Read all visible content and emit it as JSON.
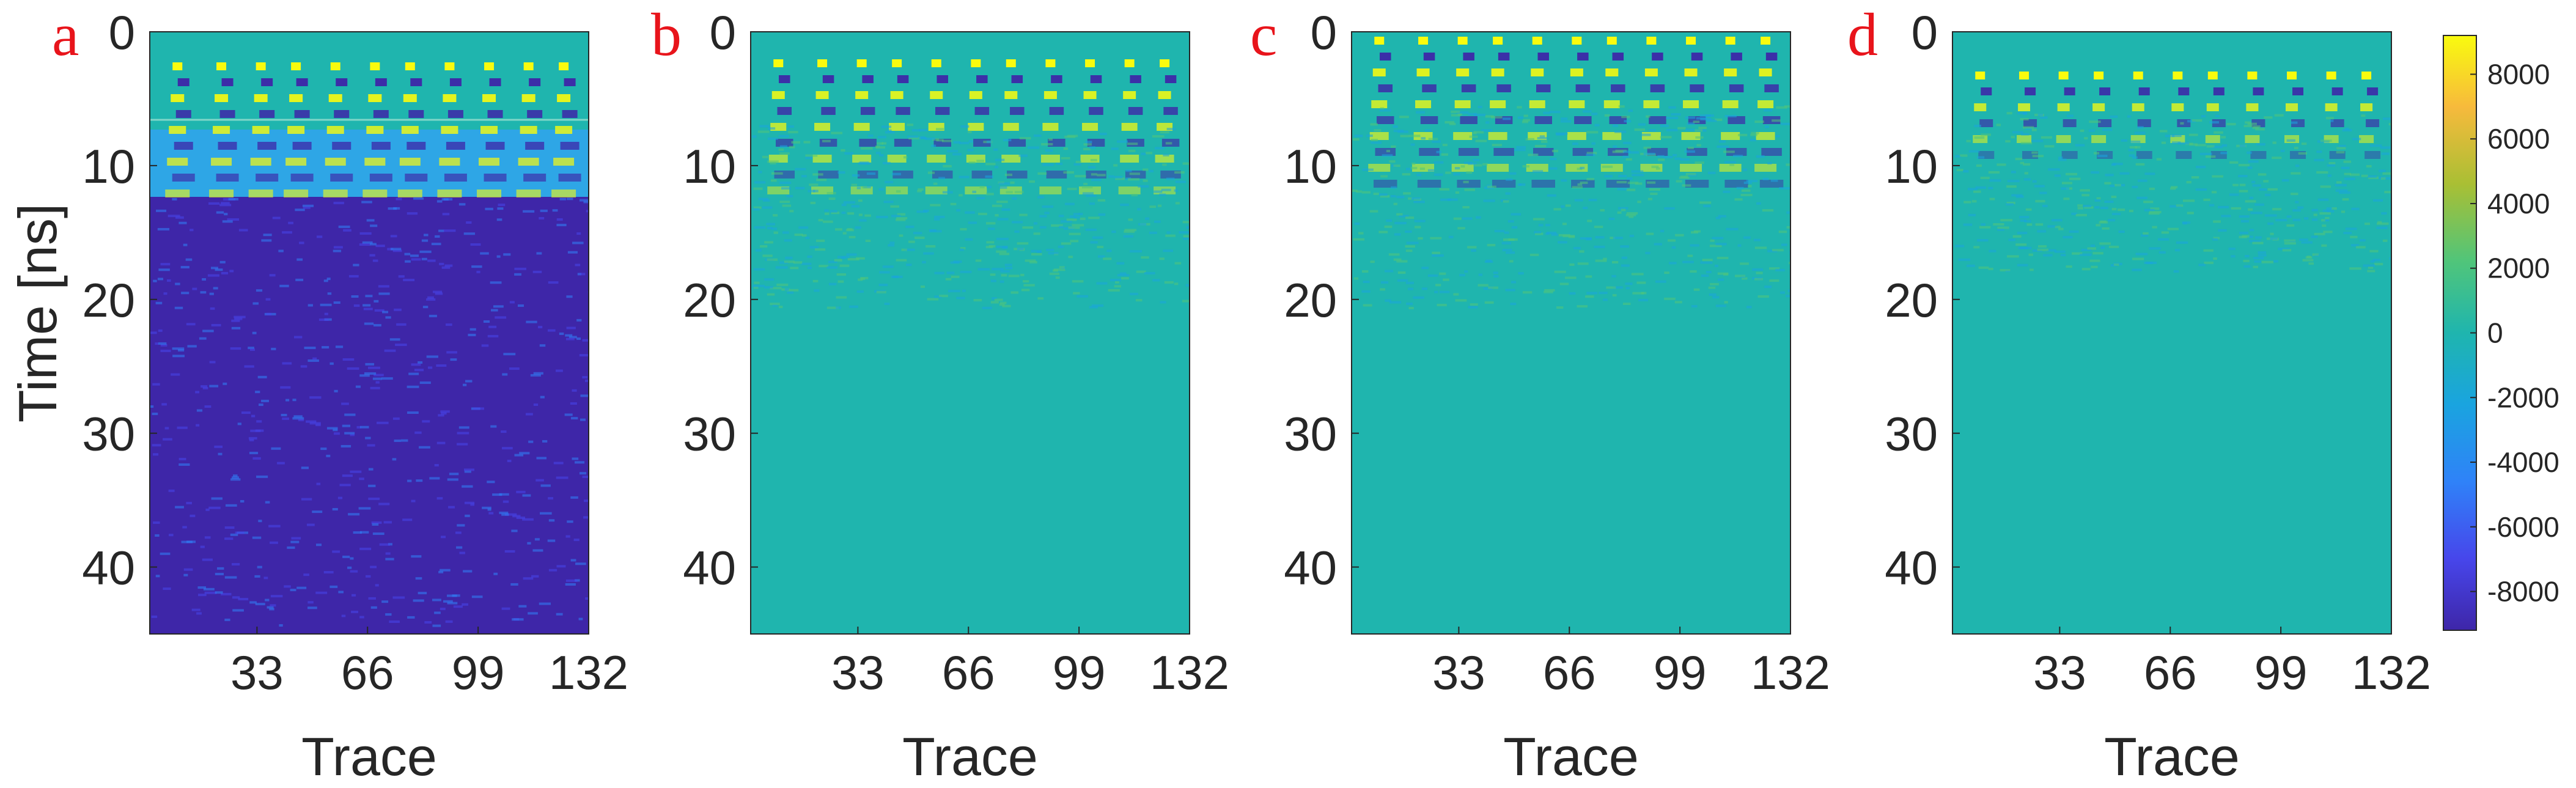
{
  "chart_data": [
    {
      "type": "heatmap",
      "panel_label": "a",
      "xlabel": "Trace",
      "ylabel": "Time [ns]",
      "x_ticks": [
        33,
        66,
        99,
        132
      ],
      "y_ticks": [
        0,
        10,
        20,
        30,
        40
      ],
      "xlim": [
        1,
        132
      ],
      "ylim": [
        0,
        45
      ],
      "grid": false,
      "description_values": {
        "background_value_late_time": -9000,
        "onset_time_ns": 3,
        "noise_floor_start_ns": 12
      }
    },
    {
      "type": "heatmap",
      "panel_label": "b",
      "xlabel": "Trace",
      "ylabel": "",
      "x_ticks": [
        33,
        66,
        99,
        132
      ],
      "y_ticks": [
        0,
        10,
        20,
        30,
        40
      ],
      "xlim": [
        1,
        132
      ],
      "ylim": [
        0,
        45
      ],
      "grid": false
    },
    {
      "type": "heatmap",
      "panel_label": "c",
      "xlabel": "Trace",
      "ylabel": "",
      "x_ticks": [
        33,
        66,
        99,
        132
      ],
      "y_ticks": [
        0,
        10,
        20,
        30,
        40
      ],
      "xlim": [
        1,
        132
      ],
      "ylim": [
        0,
        45
      ],
      "grid": false
    },
    {
      "type": "heatmap",
      "panel_label": "d",
      "xlabel": "Trace",
      "ylabel": "",
      "x_ticks": [
        33,
        66,
        99,
        132
      ],
      "y_ticks": [
        0,
        10,
        20,
        30,
        40
      ],
      "xlim": [
        1,
        132
      ],
      "ylim": [
        0,
        45
      ],
      "grid": false
    }
  ],
  "colorbar": {
    "ticks": [
      8000,
      6000,
      4000,
      2000,
      0,
      -2000,
      -4000,
      -6000,
      -8000
    ],
    "range": [
      -9200,
      9200
    ],
    "colormap": "parula"
  },
  "colors": {
    "background_teal": "#1fb5ae",
    "low": "#3e26a8",
    "high": "#f9fb0e",
    "letter_red": "#e8141b"
  }
}
